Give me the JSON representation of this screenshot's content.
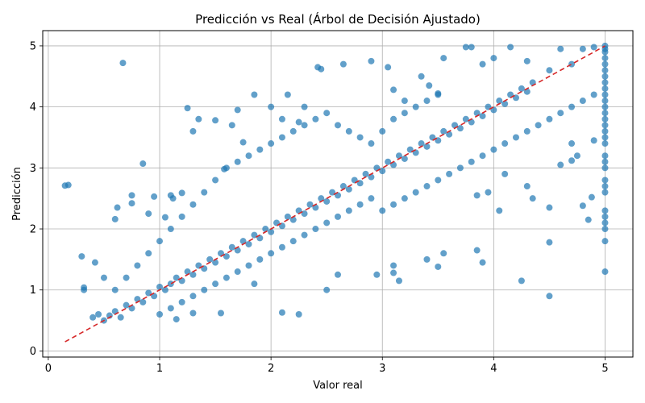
{
  "chart_data": {
    "type": "scatter",
    "title": "Predicción vs Real (Árbol de Decisión Ajustado)",
    "xlabel": "Valor real",
    "ylabel": "Predicción",
    "xlim": [
      -0.05,
      5.25
    ],
    "ylim": [
      -0.1,
      5.25
    ],
    "xticks": [
      0,
      1,
      2,
      3,
      4,
      5
    ],
    "yticks": [
      0,
      1,
      2,
      3,
      4,
      5
    ],
    "grid": true,
    "point_color": "#1f77b4",
    "point_opacity": 0.7,
    "reference_line": {
      "x": [
        0.15,
        5.0
      ],
      "y": [
        0.15,
        5.0
      ],
      "color": "#d62728",
      "style": "dashed"
    },
    "series": [
      {
        "values": [
          [
            0.15,
            2.71
          ],
          [
            0.18,
            2.72
          ],
          [
            0.3,
            1.55
          ],
          [
            0.32,
            1.0
          ],
          [
            0.32,
            1.04
          ],
          [
            0.42,
            1.45
          ],
          [
            0.5,
            1.2
          ],
          [
            0.6,
            2.16
          ],
          [
            0.62,
            2.35
          ],
          [
            0.67,
            4.72
          ],
          [
            0.75,
            2.42
          ],
          [
            0.75,
            2.55
          ],
          [
            0.85,
            3.07
          ],
          [
            0.9,
            2.25
          ],
          [
            0.95,
            2.53
          ],
          [
            1.05,
            2.19
          ],
          [
            1.1,
            2.55
          ],
          [
            1.12,
            2.5
          ],
          [
            1.2,
            2.59
          ],
          [
            1.25,
            3.98
          ],
          [
            1.3,
            3.6
          ],
          [
            1.35,
            3.8
          ],
          [
            1.5,
            3.78
          ],
          [
            1.58,
            2.98
          ],
          [
            1.65,
            3.7
          ],
          [
            1.7,
            3.95
          ],
          [
            1.75,
            3.42
          ],
          [
            1.85,
            4.2
          ],
          [
            2.0,
            4.0
          ],
          [
            2.1,
            3.8
          ],
          [
            2.15,
            4.2
          ],
          [
            2.25,
            3.75
          ],
          [
            2.3,
            4.0
          ],
          [
            2.42,
            4.65
          ],
          [
            2.45,
            4.62
          ],
          [
            2.65,
            4.7
          ],
          [
            2.9,
            4.75
          ],
          [
            3.05,
            4.65
          ],
          [
            3.1,
            4.28
          ],
          [
            3.2,
            4.1
          ],
          [
            3.35,
            4.5
          ],
          [
            3.42,
            4.35
          ],
          [
            3.5,
            4.22
          ],
          [
            3.55,
            4.8
          ],
          [
            3.75,
            4.98
          ],
          [
            3.8,
            4.98
          ],
          [
            3.9,
            4.7
          ],
          [
            4.0,
            4.8
          ],
          [
            4.15,
            4.98
          ],
          [
            4.3,
            4.75
          ],
          [
            4.5,
            4.6
          ],
          [
            4.6,
            4.95
          ],
          [
            4.7,
            4.7
          ],
          [
            4.8,
            4.95
          ],
          [
            4.9,
            4.98
          ],
          [
            1.15,
            0.52
          ],
          [
            1.3,
            0.62
          ],
          [
            1.55,
            0.62
          ],
          [
            1.85,
            1.1
          ],
          [
            2.1,
            0.63
          ],
          [
            2.25,
            0.6
          ],
          [
            2.5,
            1.0
          ],
          [
            2.6,
            1.25
          ],
          [
            2.95,
            1.25
          ],
          [
            3.1,
            1.4
          ],
          [
            3.1,
            1.28
          ],
          [
            3.15,
            1.15
          ],
          [
            3.4,
            1.5
          ],
          [
            3.5,
            1.38
          ],
          [
            3.55,
            1.6
          ],
          [
            3.85,
            1.65
          ],
          [
            3.9,
            1.45
          ],
          [
            4.25,
            1.15
          ],
          [
            4.5,
            0.9
          ],
          [
            4.5,
            1.78
          ],
          [
            4.5,
            2.35
          ],
          [
            4.6,
            3.05
          ],
          [
            4.7,
            3.12
          ],
          [
            4.8,
            2.38
          ],
          [
            4.85,
            2.15
          ],
          [
            4.88,
            2.52
          ],
          [
            4.7,
            3.4
          ],
          [
            4.75,
            3.2
          ],
          [
            4.9,
            3.45
          ],
          [
            4.3,
            2.7
          ],
          [
            4.35,
            2.5
          ],
          [
            4.1,
            2.9
          ],
          [
            4.05,
            2.3
          ],
          [
            3.95,
            2.6
          ],
          [
            3.85,
            2.55
          ],
          [
            0.4,
            0.55
          ],
          [
            0.45,
            0.6
          ],
          [
            0.5,
            0.5
          ],
          [
            0.55,
            0.58
          ],
          [
            0.6,
            0.65
          ],
          [
            0.65,
            0.55
          ],
          [
            0.7,
            0.75
          ],
          [
            0.75,
            0.7
          ],
          [
            0.8,
            0.85
          ],
          [
            0.85,
            0.8
          ],
          [
            0.9,
            0.95
          ],
          [
            0.95,
            0.9
          ],
          [
            1.0,
            1.05
          ],
          [
            1.05,
            1.0
          ],
          [
            1.1,
            1.1
          ],
          [
            1.15,
            1.2
          ],
          [
            1.2,
            1.15
          ],
          [
            1.25,
            1.3
          ],
          [
            1.3,
            1.25
          ],
          [
            1.35,
            1.4
          ],
          [
            1.4,
            1.35
          ],
          [
            1.45,
            1.5
          ],
          [
            1.5,
            1.45
          ],
          [
            1.55,
            1.6
          ],
          [
            1.6,
            1.55
          ],
          [
            1.65,
            1.7
          ],
          [
            1.7,
            1.65
          ],
          [
            1.75,
            1.8
          ],
          [
            1.8,
            1.75
          ],
          [
            1.85,
            1.9
          ],
          [
            1.9,
            1.85
          ],
          [
            1.95,
            2.0
          ],
          [
            2.0,
            1.95
          ],
          [
            2.05,
            2.1
          ],
          [
            2.1,
            2.05
          ],
          [
            2.15,
            2.2
          ],
          [
            2.2,
            2.15
          ],
          [
            2.25,
            2.3
          ],
          [
            2.3,
            2.25
          ],
          [
            2.35,
            2.4
          ],
          [
            2.4,
            2.35
          ],
          [
            2.45,
            2.5
          ],
          [
            2.5,
            2.45
          ],
          [
            2.55,
            2.6
          ],
          [
            2.6,
            2.55
          ],
          [
            2.65,
            2.7
          ],
          [
            2.7,
            2.65
          ],
          [
            2.75,
            2.8
          ],
          [
            2.8,
            2.75
          ],
          [
            2.85,
            2.9
          ],
          [
            2.9,
            2.85
          ],
          [
            2.95,
            3.0
          ],
          [
            3.0,
            2.95
          ],
          [
            3.05,
            3.1
          ],
          [
            3.1,
            3.05
          ],
          [
            3.15,
            3.2
          ],
          [
            3.2,
            3.15
          ],
          [
            3.25,
            3.3
          ],
          [
            3.3,
            3.25
          ],
          [
            3.35,
            3.4
          ],
          [
            3.4,
            3.35
          ],
          [
            3.45,
            3.5
          ],
          [
            3.5,
            3.45
          ],
          [
            3.55,
            3.6
          ],
          [
            3.6,
            3.55
          ],
          [
            3.65,
            3.7
          ],
          [
            3.7,
            3.65
          ],
          [
            3.75,
            3.8
          ],
          [
            3.8,
            3.75
          ],
          [
            3.85,
            3.9
          ],
          [
            3.9,
            3.85
          ],
          [
            3.95,
            4.0
          ],
          [
            4.0,
            3.95
          ],
          [
            4.05,
            4.1
          ],
          [
            4.1,
            4.05
          ],
          [
            4.15,
            4.2
          ],
          [
            4.2,
            4.15
          ],
          [
            4.25,
            4.3
          ],
          [
            4.3,
            4.25
          ],
          [
            4.35,
            4.4
          ],
          [
            0.6,
            1.0
          ],
          [
            0.7,
            1.2
          ],
          [
            0.8,
            1.4
          ],
          [
            0.9,
            1.6
          ],
          [
            1.0,
            1.8
          ],
          [
            1.1,
            2.0
          ],
          [
            1.2,
            2.2
          ],
          [
            1.3,
            2.4
          ],
          [
            1.4,
            2.6
          ],
          [
            1.5,
            2.8
          ],
          [
            1.6,
            3.0
          ],
          [
            1.7,
            3.1
          ],
          [
            1.8,
            3.2
          ],
          [
            1.9,
            3.3
          ],
          [
            2.0,
            3.4
          ],
          [
            2.1,
            3.5
          ],
          [
            2.2,
            3.6
          ],
          [
            2.3,
            3.7
          ],
          [
            2.4,
            3.8
          ],
          [
            2.5,
            3.9
          ],
          [
            2.6,
            3.7
          ],
          [
            2.7,
            3.6
          ],
          [
            2.8,
            3.5
          ],
          [
            2.9,
            3.4
          ],
          [
            3.0,
            3.6
          ],
          [
            3.1,
            3.8
          ],
          [
            3.2,
            3.9
          ],
          [
            3.3,
            4.0
          ],
          [
            3.4,
            4.1
          ],
          [
            3.5,
            4.2
          ],
          [
            1.0,
            0.6
          ],
          [
            1.1,
            0.7
          ],
          [
            1.2,
            0.8
          ],
          [
            1.3,
            0.9
          ],
          [
            1.4,
            1.0
          ],
          [
            1.5,
            1.1
          ],
          [
            1.6,
            1.2
          ],
          [
            1.7,
            1.3
          ],
          [
            1.8,
            1.4
          ],
          [
            1.9,
            1.5
          ],
          [
            2.0,
            1.6
          ],
          [
            2.1,
            1.7
          ],
          [
            2.2,
            1.8
          ],
          [
            2.3,
            1.9
          ],
          [
            2.4,
            2.0
          ],
          [
            2.5,
            2.1
          ],
          [
            2.6,
            2.2
          ],
          [
            2.7,
            2.3
          ],
          [
            2.8,
            2.4
          ],
          [
            2.9,
            2.5
          ],
          [
            3.0,
            2.3
          ],
          [
            3.1,
            2.4
          ],
          [
            3.2,
            2.5
          ],
          [
            3.3,
            2.6
          ],
          [
            3.4,
            2.7
          ],
          [
            3.5,
            2.8
          ],
          [
            3.6,
            2.9
          ],
          [
            3.7,
            3.0
          ],
          [
            3.8,
            3.1
          ],
          [
            3.9,
            3.2
          ],
          [
            4.0,
            3.3
          ],
          [
            4.1,
            3.4
          ],
          [
            4.2,
            3.5
          ],
          [
            4.3,
            3.6
          ],
          [
            4.4,
            3.7
          ],
          [
            4.5,
            3.8
          ],
          [
            4.6,
            3.9
          ],
          [
            4.7,
            4.0
          ],
          [
            4.8,
            4.1
          ],
          [
            4.9,
            4.2
          ],
          [
            5.0,
            1.3
          ],
          [
            5.0,
            1.8
          ],
          [
            5.0,
            2.0
          ],
          [
            5.0,
            2.2
          ],
          [
            5.0,
            2.3
          ],
          [
            5.0,
            2.6
          ],
          [
            5.0,
            2.8
          ],
          [
            5.0,
            3.0
          ],
          [
            5.0,
            3.2
          ],
          [
            5.0,
            3.4
          ],
          [
            5.0,
            3.5
          ],
          [
            5.0,
            3.7
          ],
          [
            5.0,
            3.9
          ],
          [
            5.0,
            4.0
          ],
          [
            5.0,
            4.2
          ],
          [
            5.0,
            4.3
          ],
          [
            5.0,
            4.5
          ],
          [
            5.0,
            4.6
          ],
          [
            5.0,
            4.7
          ],
          [
            5.0,
            4.8
          ],
          [
            5.0,
            4.9
          ],
          [
            5.0,
            5.0
          ],
          [
            5.0,
            4.95
          ],
          [
            5.0,
            4.4
          ],
          [
            5.0,
            3.8
          ],
          [
            5.0,
            3.1
          ],
          [
            5.0,
            2.7
          ],
          [
            5.0,
            2.1
          ],
          [
            5.0,
            3.6
          ],
          [
            5.0,
            4.1
          ]
        ]
      }
    ]
  }
}
